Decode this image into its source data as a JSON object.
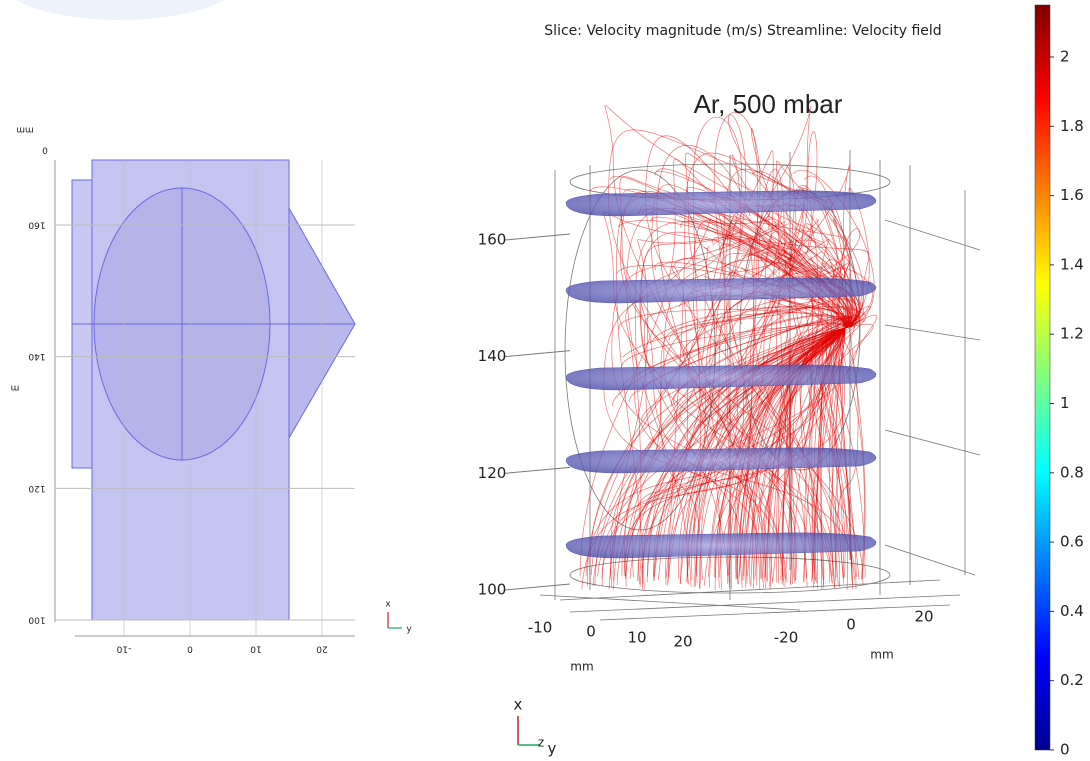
{
  "left_view": {
    "axis_unit": "mm",
    "origin_label": "0",
    "side_label": "m",
    "y_ticks": [
      160,
      140,
      120,
      100
    ],
    "x_ticks": [
      -10,
      0,
      10,
      20
    ],
    "triad": {
      "up": "x",
      "right": "y"
    }
  },
  "right_view": {
    "title": "Slice: Velocity magnitude (m/s)  Streamline: Velocity field",
    "subtitle": "Ar, 500 mbar",
    "z_ticks": [
      160,
      140,
      120,
      100
    ],
    "x_ticks": [
      -10,
      0,
      10,
      20
    ],
    "x_unit": "mm",
    "y_ticks": [
      -20,
      0,
      20
    ],
    "y_unit": "mm",
    "triad": {
      "up": "x",
      "z": "z",
      "right": "y"
    }
  },
  "colorbar": {
    "lim": [
      0,
      2.15
    ],
    "ticks": [
      0,
      0.2,
      0.4,
      0.6,
      0.8,
      1,
      1.2,
      1.4,
      1.6,
      1.8,
      2
    ]
  }
}
